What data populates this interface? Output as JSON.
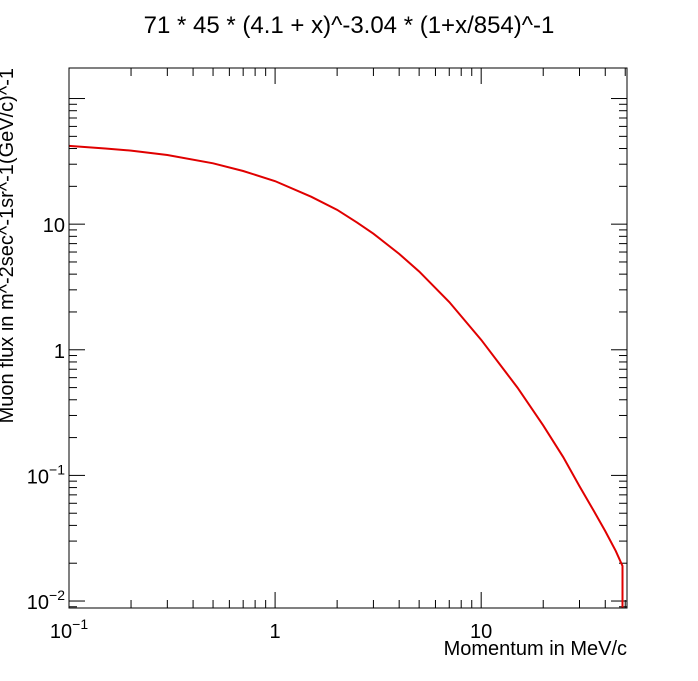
{
  "chart_data": {
    "type": "line",
    "title": "71 * 45 * (4.1 + x)^-3.04 * (1+x/854)^-1",
    "xlabel": "Momentum in MeV/c",
    "ylabel": "Muon flux in m^-2sec^-1sr^-1(GeV/c)^-1",
    "x_scale": "log",
    "y_scale": "log",
    "xlim": [
      0.1,
      51
    ],
    "ylim": [
      0.0088,
      175
    ],
    "grid": false,
    "x_ticks": [
      {
        "value": 0.1,
        "base": "10",
        "exp": "−1"
      },
      {
        "value": 1,
        "base": "1",
        "exp": ""
      },
      {
        "value": 10,
        "base": "10",
        "exp": ""
      }
    ],
    "y_ticks": [
      {
        "value": 0.01,
        "base": "10",
        "exp": "−2"
      },
      {
        "value": 0.1,
        "base": "10",
        "exp": "−1"
      },
      {
        "value": 1,
        "base": "1",
        "exp": ""
      },
      {
        "value": 10,
        "base": "10",
        "exp": ""
      }
    ],
    "series": [
      {
        "color": "#e00000",
        "x": [
          0.1,
          0.15,
          0.2,
          0.3,
          0.5,
          0.7,
          1,
          1.5,
          2,
          2.5,
          3,
          4,
          5,
          7,
          10,
          15,
          20,
          25,
          30,
          35,
          40,
          45,
          48.5
        ],
        "y": [
          42,
          40,
          38.5,
          35.5,
          30.5,
          26.5,
          22,
          16.5,
          13,
          10.3,
          8.4,
          5.8,
          4.2,
          2.4,
          1.2,
          0.5,
          0.25,
          0.14,
          0.082,
          0.053,
          0.036,
          0.025,
          0.019
        ]
      }
    ]
  }
}
